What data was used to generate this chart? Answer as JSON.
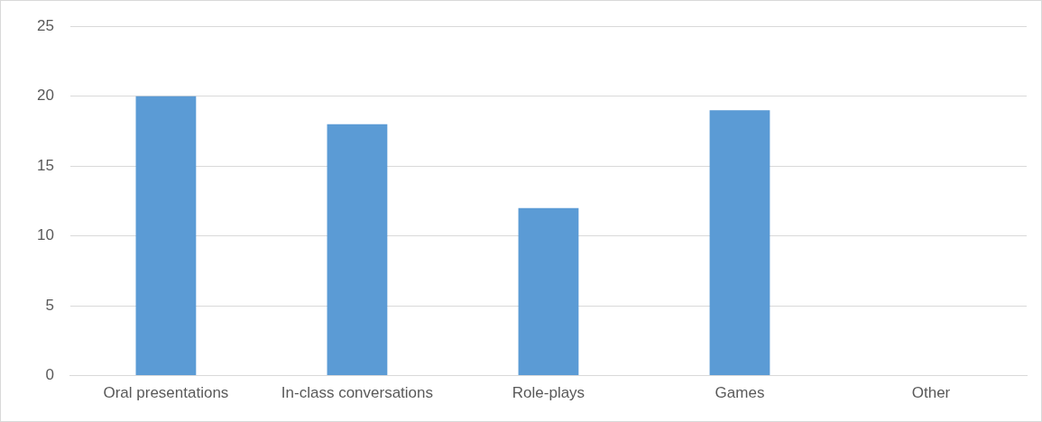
{
  "chart_data": {
    "type": "bar",
    "categories": [
      "Oral presentations",
      "In-class conversations",
      "Role-plays",
      "Games",
      "Other"
    ],
    "values": [
      20,
      18,
      12,
      19,
      0
    ],
    "color": "#5b9bd5",
    "ylim": [
      0,
      25
    ],
    "yticks": [
      0,
      5,
      10,
      15,
      20,
      25
    ],
    "grid": "y"
  }
}
